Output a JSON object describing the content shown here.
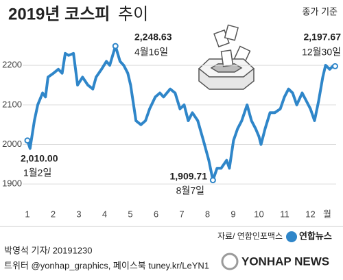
{
  "chart_data": {
    "type": "line",
    "title": "2019년 코스피",
    "title_2": "추이",
    "note": "종가 기준",
    "x_unit": "월",
    "source": "자료/ 연합인포맥스",
    "color": "#2f86c9",
    "xlim": [
      1,
      13
    ],
    "xticks": [
      1,
      2,
      3,
      4,
      5,
      6,
      7,
      8,
      9,
      10,
      11,
      12
    ],
    "ylim": [
      1850,
      2280
    ],
    "yticks": [
      1900,
      2000,
      2100,
      2200
    ],
    "grid": true,
    "x": [
      1.0,
      1.1,
      1.27,
      1.4,
      1.59,
      1.7,
      1.8,
      2.01,
      2.2,
      2.35,
      2.47,
      2.6,
      2.79,
      2.95,
      3.14,
      3.35,
      3.54,
      3.67,
      3.88,
      4.07,
      4.2,
      4.42,
      4.6,
      4.74,
      4.9,
      5.01,
      5.22,
      5.41,
      5.59,
      5.75,
      5.97,
      6.15,
      6.29,
      6.55,
      6.74,
      6.93,
      7.09,
      7.25,
      7.41,
      7.62,
      7.84,
      8.05,
      8.21,
      8.37,
      8.53,
      8.74,
      8.85,
      9.01,
      9.17,
      9.33,
      9.54,
      9.71,
      9.87,
      10.0,
      10.08,
      10.24,
      10.43,
      10.61,
      10.83,
      10.99,
      11.15,
      11.31,
      11.47,
      11.68,
      11.84,
      12.0,
      12.16,
      12.32,
      12.48,
      12.59,
      12.75,
      12.91,
      12.96
    ],
    "values": [
      2010,
      1990,
      2060,
      2100,
      2130,
      2120,
      2170,
      2180,
      2190,
      2180,
      2230,
      2225,
      2230,
      2150,
      2170,
      2150,
      2140,
      2170,
      2190,
      2210,
      2200,
      2248.63,
      2210,
      2200,
      2180,
      2150,
      2060,
      2050,
      2060,
      2090,
      2120,
      2130,
      2120,
      2140,
      2130,
      2090,
      2100,
      2060,
      2080,
      2060,
      2010,
      1960,
      1909.71,
      1940,
      1940,
      1960,
      1940,
      2010,
      2040,
      2060,
      2100,
      2060,
      2040,
      2020,
      2000,
      2040,
      2080,
      2080,
      2090,
      2120,
      2140,
      2130,
      2100,
      2130,
      2110,
      2090,
      2060,
      2110,
      2170,
      2200,
      2190,
      2200,
      2197.67
    ],
    "annotations": [
      {
        "x": 1.0,
        "value": 2010,
        "value_label": "2,010.00",
        "label": "1월2일"
      },
      {
        "x": 4.42,
        "value": 2248.63,
        "value_label": "2,248.63",
        "label": "4월16일"
      },
      {
        "x": 8.21,
        "value": 1909.71,
        "value_label": "1,909.71",
        "label": "8월7일"
      },
      {
        "x": 12.96,
        "value": 2197.67,
        "value_label": "2,197.67",
        "label": "12월30일"
      }
    ]
  },
  "footer": {
    "byline": "박영석 기자/  20191230",
    "social": "트위터 @yonhap_graphics, 페이스북 tuney.kr/LeYN1",
    "logo": "연합뉴스",
    "watermark": "YONHAP NEWS"
  }
}
